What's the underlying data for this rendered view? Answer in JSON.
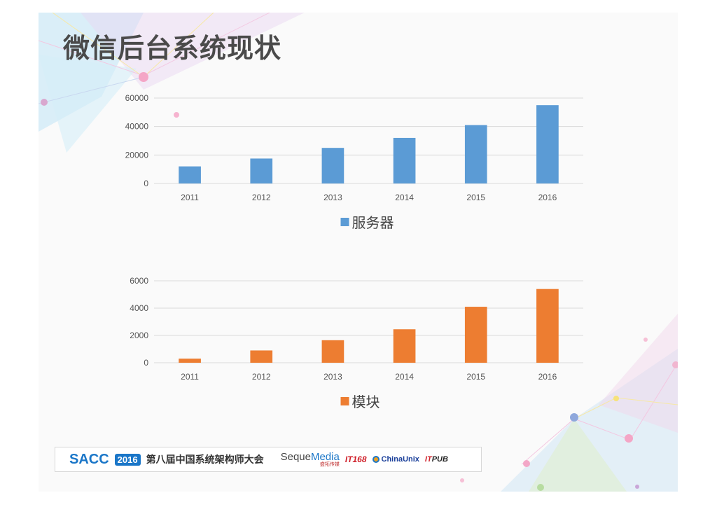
{
  "slide": {
    "title": "微信后台系统现状"
  },
  "colors": {
    "series1": "#5b9bd5",
    "series2": "#ed7d31",
    "grid": "#d9d9d9",
    "title": "#4a4a4a"
  },
  "chart_data": [
    {
      "type": "bar",
      "categories": [
        "2011",
        "2012",
        "2013",
        "2014",
        "2015",
        "2016"
      ],
      "series": [
        {
          "name": "服务器",
          "values": [
            12000,
            17500,
            25000,
            32000,
            41000,
            55000
          ]
        }
      ],
      "ylim": [
        0,
        60000
      ],
      "yticks": [
        "0",
        "20000",
        "40000",
        "60000"
      ],
      "grid": true,
      "legend": "bottom"
    },
    {
      "type": "bar",
      "categories": [
        "2011",
        "2012",
        "2013",
        "2014",
        "2015",
        "2016"
      ],
      "series": [
        {
          "name": "模块",
          "values": [
            300,
            900,
            1650,
            2450,
            4100,
            5400
          ]
        }
      ],
      "ylim": [
        0,
        6000
      ],
      "yticks": [
        "0",
        "2000",
        "4000",
        "6000"
      ],
      "grid": true,
      "legend": "bottom"
    }
  ],
  "footer": {
    "sacc": "SACC",
    "year": "2016",
    "conference": "第八届中国系统架构师大会",
    "sponsors": {
      "seque_a": "Seque",
      "seque_b": "Media",
      "seque_sub": "盛拓传媒",
      "it168": "IT168",
      "chinaunix": "ChinaUnix",
      "itpub_a": "IT",
      "itpub_b": "PUB"
    }
  }
}
